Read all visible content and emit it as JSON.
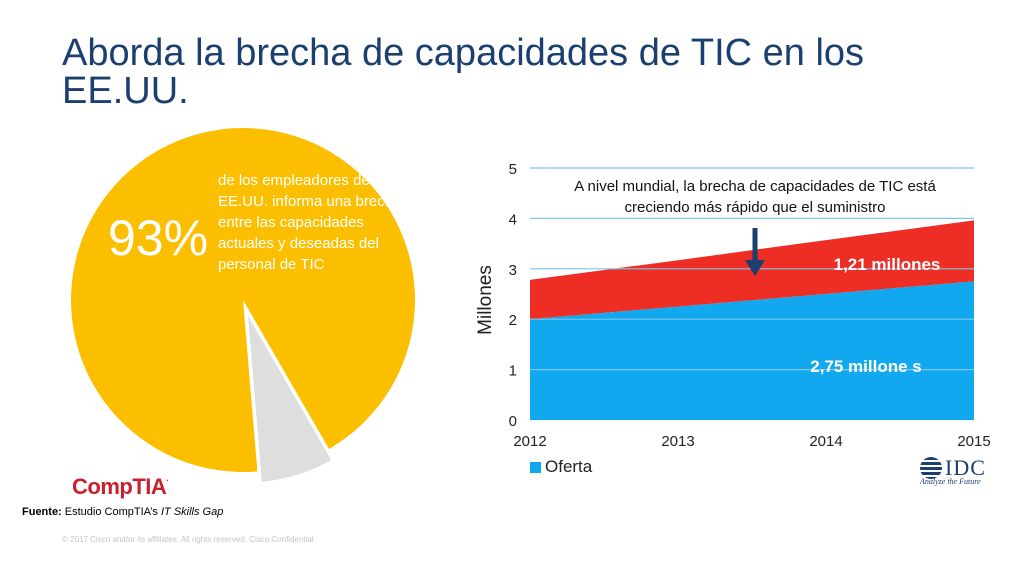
{
  "title": "Aborda la brecha de capacidades de TIC en los EE.UU.",
  "colors": {
    "title": "#1b3f6e",
    "pie_main": "#fcbf00",
    "pie_rest": "#dedede",
    "gap": "#ee2d24",
    "supply": "#11a8ef",
    "arrow": "#1b3f6e"
  },
  "left": {
    "big_number": "93%",
    "description": "de los empleadores de los EE.UU. informa una brecha entre las capacidades actuales y deseadas del personal de TIC",
    "logo_text": "CompTIA",
    "logo_tm": "."
  },
  "source": {
    "label": "Fuente:",
    "text": " Estudio CompTIA’s ",
    "italic": "IT Skills Gap"
  },
  "footer": "© 2017 Cisco and/or its affiliates. All rights reserved. Cisco Confidential",
  "right": {
    "annotation": "A nivel mundial, la brecha de capacidades de TIC está creciendo más rápido que el suministro",
    "gap_label": "1,21 millones",
    "supply_label": "2,75 millone s",
    "legend_label": "Oferta",
    "idc_text": "IDC",
    "idc_tagline": "Analyze the Future"
  },
  "chart_data": [
    {
      "type": "pie",
      "labels": [
        "93%",
        ""
      ],
      "values": [
        93,
        7
      ]
    },
    {
      "type": "area",
      "x": [
        2012,
        2013,
        2014,
        2015
      ],
      "ylabel": "Millones",
      "ylim": [
        0,
        5
      ],
      "yticks": [
        0,
        1,
        2,
        3,
        4,
        5
      ],
      "grid": true,
      "legend": "bottom-left",
      "series": [
        {
          "name": "Oferta",
          "values": [
            2.0,
            2.25,
            2.5,
            2.75
          ]
        },
        {
          "values": [
            0.78,
            0.92,
            1.07,
            1.21
          ]
        }
      ]
    }
  ]
}
